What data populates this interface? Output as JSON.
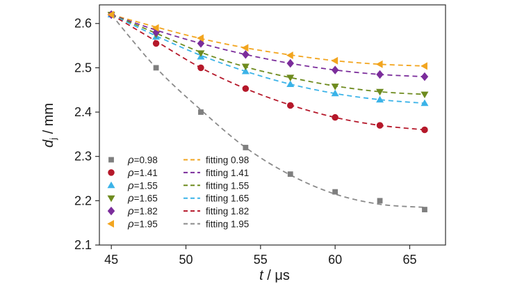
{
  "chart_data": {
    "type": "scatter",
    "x_axis": {
      "symbol": "t",
      "unit": "μs",
      "separator": " / ",
      "range": [
        44.2,
        67.4
      ],
      "ticks": [
        45,
        50,
        55,
        60,
        65
      ],
      "tick_labels": [
        "45",
        "50",
        "55",
        "60",
        "65"
      ]
    },
    "y_axis": {
      "symbol": "d",
      "subscript": "j",
      "unit": "mm",
      "separator": " / ",
      "range": [
        2.1,
        2.642
      ],
      "ticks": [
        2.1,
        2.2,
        2.3,
        2.4,
        2.5,
        2.6
      ],
      "tick_labels": [
        "2.1",
        "2.2",
        "2.3",
        "2.4",
        "2.5",
        "2.6"
      ]
    },
    "x": [
      45,
      48,
      51,
      54,
      57,
      60,
      63,
      66
    ],
    "series": [
      {
        "name": "ρ=0.98",
        "symbol_label": "ρ",
        "value_label": "=0.98",
        "marker": "square",
        "color": "#7f7f7f",
        "values": [
          2.62,
          2.5,
          2.4,
          2.32,
          2.26,
          2.22,
          2.2,
          2.18
        ]
      },
      {
        "name": "ρ=1.41",
        "symbol_label": "ρ",
        "value_label": "=1.41",
        "marker": "circle",
        "color": "#b5182a",
        "values": [
          2.62,
          2.555,
          2.5,
          2.453,
          2.415,
          2.388,
          2.37,
          2.36
        ]
      },
      {
        "name": "ρ=1.55",
        "symbol_label": "ρ",
        "value_label": "=1.55",
        "marker": "triangle-up",
        "color": "#3bb3e8",
        "values": [
          2.62,
          2.57,
          2.525,
          2.492,
          2.463,
          2.442,
          2.428,
          2.42
        ]
      },
      {
        "name": "ρ=1.65",
        "symbol_label": "ρ",
        "value_label": "=1.65",
        "marker": "triangle-down",
        "color": "#6e8b1f",
        "values": [
          2.62,
          2.575,
          2.533,
          2.503,
          2.478,
          2.458,
          2.446,
          2.44
        ]
      },
      {
        "name": "ρ=1.82",
        "symbol_label": "ρ",
        "value_label": "=1.82",
        "marker": "diamond",
        "color": "#7b2d9b",
        "values": [
          2.62,
          2.58,
          2.555,
          2.53,
          2.51,
          2.495,
          2.485,
          2.48
        ]
      },
      {
        "name": "ρ=1.95",
        "symbol_label": "ρ",
        "value_label": "=1.95",
        "marker": "triangle-left",
        "color": "#f2a51f",
        "values": [
          2.62,
          2.59,
          2.567,
          2.545,
          2.528,
          2.516,
          2.508,
          2.504
        ]
      }
    ],
    "fits": [
      {
        "name": "fitting 0.98",
        "color": "#f2a51f",
        "values": [
          2.62,
          2.592,
          2.566,
          2.545,
          2.529,
          2.516,
          2.508,
          2.504
        ]
      },
      {
        "name": "fitting 1.41",
        "color": "#7b2d9b",
        "values": [
          2.62,
          2.585,
          2.555,
          2.53,
          2.51,
          2.495,
          2.485,
          2.48
        ]
      },
      {
        "name": "fitting 1.55",
        "color": "#6e8b1f",
        "values": [
          2.62,
          2.578,
          2.535,
          2.502,
          2.478,
          2.459,
          2.446,
          2.44
        ]
      },
      {
        "name": "fitting 1.65",
        "color": "#3bb3e8",
        "values": [
          2.62,
          2.572,
          2.528,
          2.492,
          2.463,
          2.442,
          2.428,
          2.42
        ]
      },
      {
        "name": "fitting 1.82",
        "color": "#b5182a",
        "values": [
          2.62,
          2.56,
          2.5,
          2.453,
          2.416,
          2.388,
          2.37,
          2.36
        ]
      },
      {
        "name": "fitting 1.95",
        "color": "#8a8a8a",
        "values": [
          2.62,
          2.5,
          2.405,
          2.32,
          2.258,
          2.215,
          2.192,
          2.185
        ]
      }
    ],
    "grid": false,
    "legend_position": "bottom-left"
  }
}
